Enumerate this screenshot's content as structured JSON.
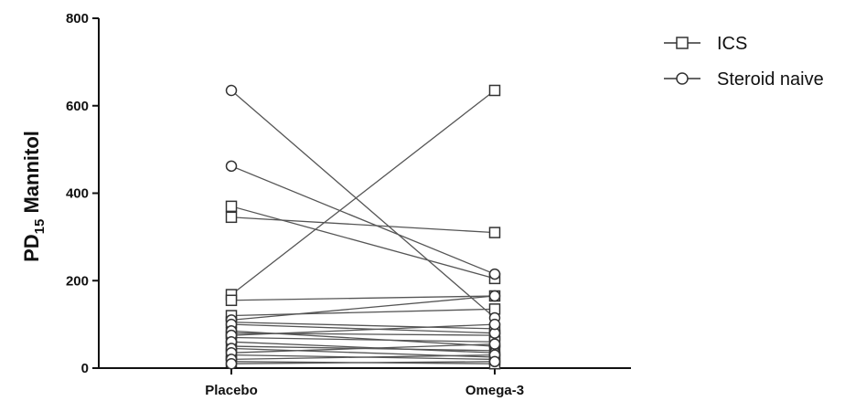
{
  "chart_data": {
    "type": "line",
    "title": "",
    "xlabel": "",
    "ylabel": {
      "main": "PD",
      "subscript": "15",
      "rest": " Mannitol"
    },
    "ylim": [
      0,
      800
    ],
    "yticks": [
      0,
      200,
      400,
      600,
      800
    ],
    "categories": [
      "Placebo",
      "Omega-3"
    ],
    "grid": false,
    "legend_position": "top-right",
    "colors": {
      "line": "#555555",
      "marker_stroke": "#333333",
      "axis": "#111111"
    },
    "series": [
      {
        "name": "ICS",
        "marker": "square",
        "pairs": [
          [
            370,
            205
          ],
          [
            345,
            310
          ],
          [
            168,
            635
          ],
          [
            155,
            165
          ],
          [
            120,
            135
          ],
          [
            105,
            90
          ],
          [
            80,
            75
          ],
          [
            70,
            60
          ],
          [
            50,
            40
          ],
          [
            30,
            20
          ],
          [
            15,
            10
          ]
        ]
      },
      {
        "name": "Steroid naive",
        "marker": "circle",
        "pairs": [
          [
            635,
            115
          ],
          [
            462,
            215
          ],
          [
            110,
            165
          ],
          [
            100,
            80
          ],
          [
            85,
            50
          ],
          [
            75,
            100
          ],
          [
            60,
            35
          ],
          [
            45,
            25
          ],
          [
            35,
            55
          ],
          [
            20,
            30
          ],
          [
            10,
            15
          ]
        ]
      }
    ]
  }
}
